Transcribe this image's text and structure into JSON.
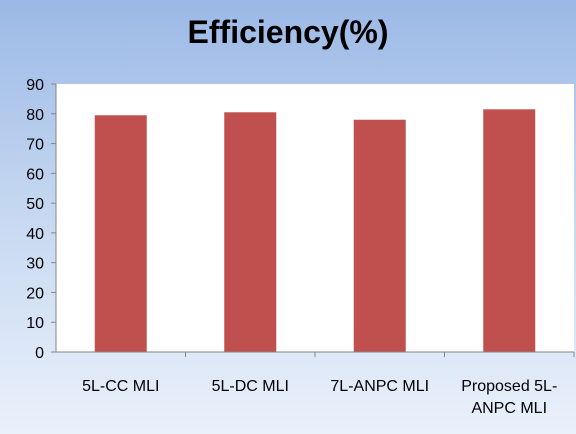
{
  "chart_data": {
    "type": "bar",
    "title": "Efficiency(%)",
    "xlabel": "",
    "ylabel": "",
    "categories": [
      [
        "5L-CC MLI"
      ],
      [
        "5L-DC MLI"
      ],
      [
        "7L-ANPC MLI"
      ],
      [
        "Proposed 5L-",
        "ANPC MLI"
      ]
    ],
    "values": [
      79.5,
      80.5,
      78,
      81.5
    ],
    "ylim": [
      0,
      90
    ],
    "yticks": [
      0,
      10,
      20,
      30,
      40,
      50,
      60,
      70,
      80,
      90
    ],
    "grid": false,
    "legend": "none",
    "colors": {
      "bar": "#c0504d",
      "plot_background": "#ffffff",
      "axis": "#868686"
    }
  }
}
